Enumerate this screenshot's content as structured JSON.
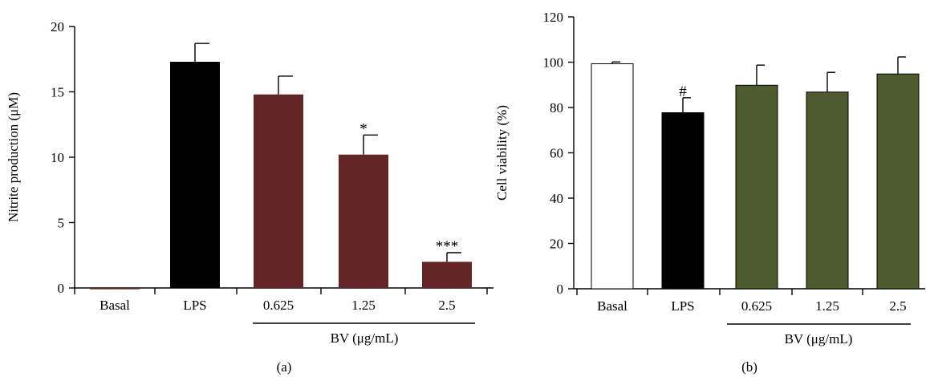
{
  "chart_data": [
    {
      "type": "bar",
      "panel_label": "(a)",
      "ylabel": "Nitrite production (μM)",
      "ylim": [
        0,
        20
      ],
      "yticks": [
        0,
        5,
        10,
        15,
        20
      ],
      "categories": [
        "Basal",
        "LPS",
        "0.625",
        "1.25",
        "2.5"
      ],
      "values": [
        -0.1,
        17.3,
        14.8,
        10.2,
        2.0
      ],
      "errors": [
        0,
        1.4,
        1.4,
        1.5,
        0.7
      ],
      "annotations": [
        "",
        "",
        "",
        "*",
        "***"
      ],
      "bar_colors": [
        "#632525",
        "#000000",
        "#632525",
        "#632525",
        "#632525"
      ],
      "group_label": "BV (μg/mL)",
      "group_categories": [
        "0.625",
        "1.25",
        "2.5"
      ]
    },
    {
      "type": "bar",
      "panel_label": "(b)",
      "ylabel": "Cell viability (%)",
      "ylim": [
        0,
        120
      ],
      "yticks": [
        0,
        20,
        40,
        60,
        80,
        100,
        120
      ],
      "categories": [
        "Basal",
        "LPS",
        "0.625",
        "1.25",
        "2.5"
      ],
      "values": [
        99.3,
        77.7,
        89.8,
        86.8,
        94.8
      ],
      "errors": [
        0.8,
        6.6,
        8.9,
        8.7,
        7.5
      ],
      "annotations": [
        "",
        "#",
        "",
        "",
        ""
      ],
      "bar_colors": [
        "#ffffff",
        "#000000",
        "#4d5b2e",
        "#4d5b2e",
        "#4d5b2e"
      ],
      "group_label": "BV (μg/mL)",
      "group_categories": [
        "0.625",
        "1.25",
        "2.5"
      ]
    }
  ]
}
